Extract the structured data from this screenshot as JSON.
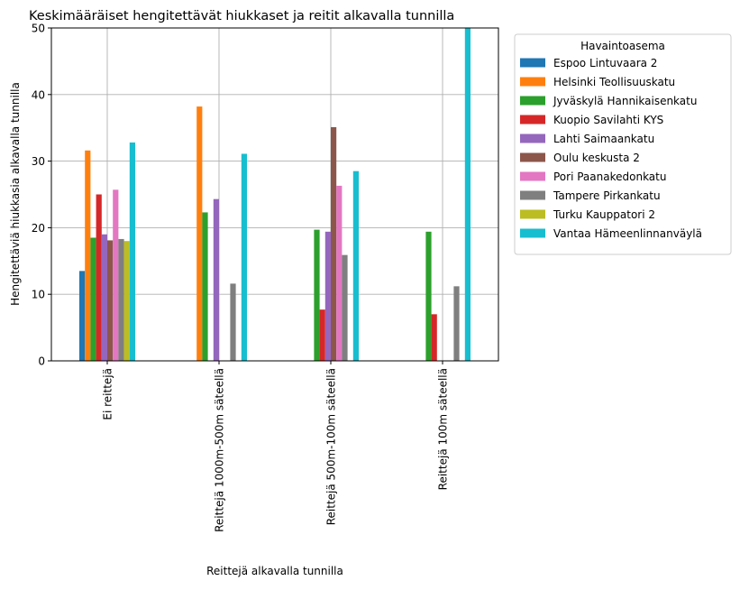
{
  "chart_data": {
    "type": "bar",
    "title": "Keskimääräiset hengitettävät hiukkaset ja reitit alkavalla tunnilla",
    "xlabel": "Reittejä alkavalla tunnilla",
    "ylabel": "Hengitettäviä hiukkasia alkavalla tunnilla",
    "ylim": [
      0,
      50
    ],
    "yticks": [
      0,
      10,
      20,
      30,
      40,
      50
    ],
    "grid": true,
    "legend_title": "Havaintoasema",
    "legend_position": "outside-right",
    "categories": [
      "Ei reittejä",
      "Reittejä 1000m-500m säteellä",
      "Reittejä 500m-100m säteellä",
      "Reittejä 100m säteellä"
    ],
    "series": [
      {
        "name": "Espoo Lintuvaara 2",
        "color": "#1f77b4",
        "values": [
          13.5,
          null,
          null,
          null
        ]
      },
      {
        "name": "Helsinki Teollisuuskatu",
        "color": "#ff7f0e",
        "values": [
          31.6,
          38.2,
          null,
          null
        ]
      },
      {
        "name": "Jyväskylä Hannikaisenkatu",
        "color": "#2ca02c",
        "values": [
          18.5,
          22.3,
          19.7,
          19.4
        ]
      },
      {
        "name": "Kuopio Savilahti KYS",
        "color": "#d62728",
        "values": [
          25.0,
          null,
          7.7,
          7.0
        ]
      },
      {
        "name": "Lahti Saimaankatu",
        "color": "#9467bd",
        "values": [
          19.0,
          24.3,
          19.4,
          null
        ]
      },
      {
        "name": "Oulu keskusta 2",
        "color": "#8c564b",
        "values": [
          18.1,
          null,
          35.1,
          null
        ]
      },
      {
        "name": "Pori Paanakedonkatu",
        "color": "#e377c2",
        "values": [
          25.7,
          null,
          26.3,
          null
        ]
      },
      {
        "name": "Tampere Pirkankatu",
        "color": "#7f7f7f",
        "values": [
          18.3,
          11.6,
          15.9,
          11.2
        ]
      },
      {
        "name": "Turku Kauppatori 2",
        "color": "#bcbd22",
        "values": [
          18.0,
          null,
          null,
          null
        ]
      },
      {
        "name": "Vantaa Hämeenlinnanväylä",
        "color": "#17becf",
        "values": [
          32.8,
          31.1,
          28.5,
          50.0
        ]
      }
    ]
  }
}
